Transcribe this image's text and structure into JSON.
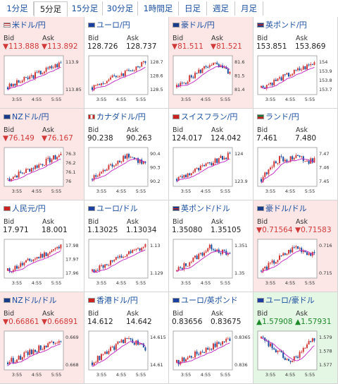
{
  "tabs": [
    {
      "label": "1分足",
      "active": false
    },
    {
      "label": "5分足",
      "active": true
    },
    {
      "label": "15分足",
      "active": false
    },
    {
      "label": "30分足",
      "active": false
    },
    {
      "label": "1時間足",
      "active": false
    },
    {
      "label": "日足",
      "active": false
    },
    {
      "label": "週足",
      "active": false
    },
    {
      "label": "月足",
      "active": false
    }
  ],
  "bid_label": "Bid",
  "ask_label": "Ask",
  "x_ticks": [
    "3:55",
    "4:55",
    "5:55"
  ],
  "colors": {
    "down_bg": "#fde6e6",
    "up_bg": "#e4f6e4",
    "candle_up": "#d23a3a",
    "candle_down": "#1a4fa0",
    "ma": "#c020c0"
  },
  "pairs": [
    {
      "name": "米ドル/円",
      "bid": "▼113.888",
      "ask": "▼113.892",
      "dir": "down",
      "flag": "us",
      "yticks": [
        "113.9",
        "113.85"
      ],
      "trend": "up"
    },
    {
      "name": "ユーロ/円",
      "bid": "128.726",
      "ask": "128.737",
      "dir": "none",
      "flag": "eu",
      "yticks": [
        "128.7",
        "128.6",
        "128.5"
      ],
      "trend": "up"
    },
    {
      "name": "豪ドル/円",
      "bid": "▼81.511",
      "ask": "▼81.521",
      "dir": "down",
      "flag": "au",
      "yticks": [
        "81.6",
        "81.5",
        "81.4"
      ],
      "trend": "rise-fall"
    },
    {
      "name": "英ポンド/円",
      "bid": "153.851",
      "ask": "153.869",
      "dir": "none",
      "flag": "gb",
      "yticks": [
        "154",
        "153.9",
        "153.8",
        "153.7"
      ],
      "trend": "up"
    },
    {
      "name": "NZドル/円",
      "bid": "▼76.149",
      "ask": "▼76.167",
      "dir": "down",
      "flag": "nz",
      "yticks": [
        "76.3",
        "76.2",
        "76.1",
        "76"
      ],
      "trend": "up"
    },
    {
      "name": "カナダドル/円",
      "bid": "90.238",
      "ask": "90.263",
      "dir": "none",
      "flag": "ca",
      "yticks": [
        "90.4",
        "90.3",
        "90.2"
      ],
      "trend": "rise-fall"
    },
    {
      "name": "スイスフラン/円",
      "bid": "124.017",
      "ask": "124.042",
      "dir": "none",
      "flag": "ch",
      "yticks": [
        "124",
        "123.9"
      ],
      "trend": "up"
    },
    {
      "name": "ランド/円",
      "bid": "7.461",
      "ask": "7.480",
      "dir": "none",
      "flag": "za",
      "yticks": [
        "7.47",
        "7.46",
        "7.45"
      ],
      "trend": "rise-flat"
    },
    {
      "name": "人民元/円",
      "bid": "17.971",
      "ask": "18.001",
      "dir": "none",
      "flag": "cn",
      "yticks": [
        "17.98",
        "17.97",
        "17.96"
      ],
      "trend": "up"
    },
    {
      "name": "ユーロ/ドル",
      "bid": "1.13025",
      "ask": "1.13034",
      "dir": "none",
      "flag": "eu",
      "yticks": [
        "1.13",
        "1.129"
      ],
      "trend": "up"
    },
    {
      "name": "英ポンド/ドル",
      "bid": "1.35080",
      "ask": "1.35105",
      "dir": "none",
      "flag": "gb",
      "yticks": [
        "1.351",
        "1.35"
      ],
      "trend": "rise-fall"
    },
    {
      "name": "豪ドル/ドル",
      "bid": "▼0.71564",
      "ask": "▼0.71583",
      "dir": "down",
      "flag": "au",
      "yticks": [
        "0.716",
        "0.715"
      ],
      "trend": "rise-fall"
    },
    {
      "name": "NZドル/ドル",
      "bid": "▼0.66861",
      "ask": "▼0.66891",
      "dir": "down",
      "flag": "nz",
      "yticks": [
        "0.669",
        "0.668"
      ],
      "trend": "up"
    },
    {
      "name": "香港ドル/円",
      "bid": "14.612",
      "ask": "14.642",
      "dir": "none",
      "flag": "hk",
      "yticks": [
        "14.615",
        "14.61"
      ],
      "trend": "rise-fall"
    },
    {
      "name": "ユーロ/英ポンド",
      "bid": "0.83656",
      "ask": "0.83675",
      "dir": "none",
      "flag": "eu",
      "yticks": [
        "0.8365",
        "0.836"
      ],
      "trend": "up"
    },
    {
      "name": "ユーロ/豪ドル",
      "bid": "▲1.57908",
      "ask": "▲1.57931",
      "dir": "up",
      "flag": "eu",
      "yticks": [
        "1.579",
        "1.578",
        "1.577"
      ],
      "trend": "down-up"
    }
  ]
}
